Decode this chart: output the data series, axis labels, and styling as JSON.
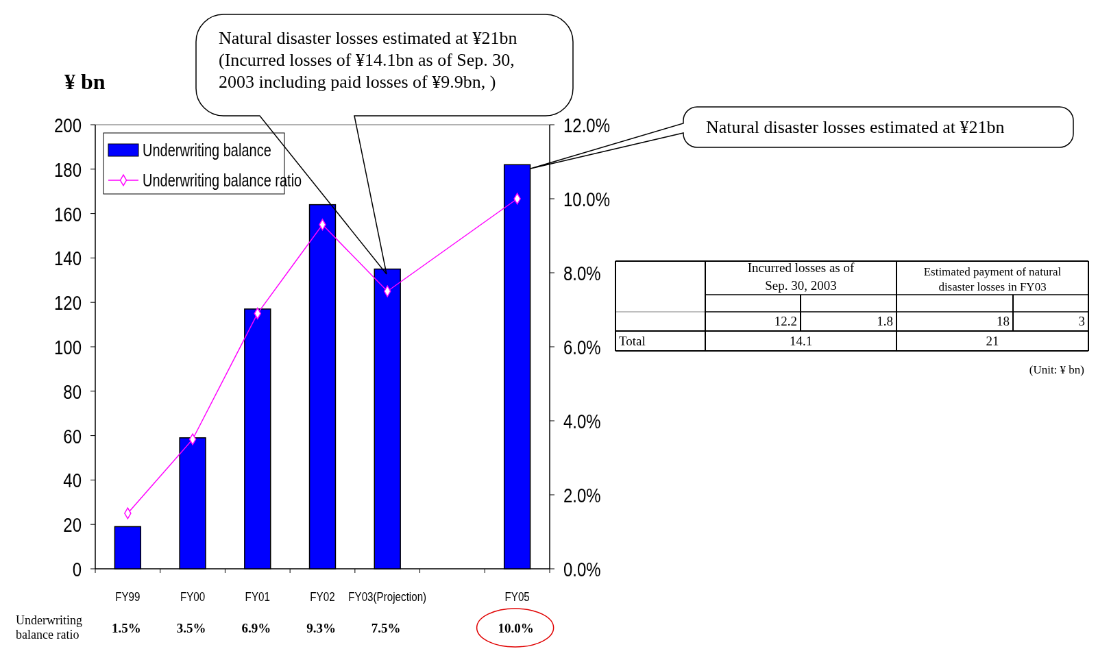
{
  "chart_data": {
    "type": "bar",
    "ylabel": "¥ bn",
    "categories": [
      "FY99",
      "FY00",
      "FY01",
      "FY02",
      "FY03(Projection)",
      null,
      "FY05"
    ],
    "series": [
      {
        "name": "Underwriting balance",
        "color": "#0000ff",
        "values": [
          19,
          59,
          117,
          164,
          135,
          null,
          182
        ]
      },
      {
        "name": "Underwriting balance ratio",
        "type": "line",
        "axis": "y2",
        "color": "#ff00ff",
        "marker": "diamond",
        "values": [
          1.5,
          3.5,
          6.9,
          9.3,
          7.5,
          null,
          10.0
        ],
        "value_labels": [
          "1.5%",
          "3.5%",
          "6.9%",
          "9.3%",
          "7.5%",
          null,
          "10.0%"
        ]
      }
    ],
    "ylim": [
      0,
      200
    ],
    "yticks": [
      0,
      20,
      40,
      60,
      80,
      100,
      120,
      140,
      160,
      180,
      200
    ],
    "y2lim": [
      0,
      12
    ],
    "y2ticks": [
      {
        "value": 0,
        "label": "0.0%"
      },
      {
        "value": 2,
        "label": "2.0%"
      },
      {
        "value": 4,
        "label": "4.0%"
      },
      {
        "value": 6,
        "label": "6.0%"
      },
      {
        "value": 8,
        "label": "8.0%"
      },
      {
        "value": 10,
        "label": "10.0%"
      },
      {
        "value": 12,
        "label": "12.0%"
      }
    ],
    "legend": "top left",
    "grid": false,
    "annotations": [
      "Natural disaster losses estimated at ¥21bn\n(Incurred losses of ¥14.1bn as of Sep. 30,\n2003 including paid losses of ¥9.9bn, )",
      "Natural disaster losses estimated at ¥21bn",
      "Underwriting\nbalance ratio",
      "Incurred losses as of\nSep. 30, 2003",
      "Estimated payment of natural\ndisaster losses in FY03",
      "12.2",
      "1.8",
      "18",
      "3",
      "Total",
      "14.1",
      "21",
      "(Unit: ¥ bn)"
    ]
  }
}
